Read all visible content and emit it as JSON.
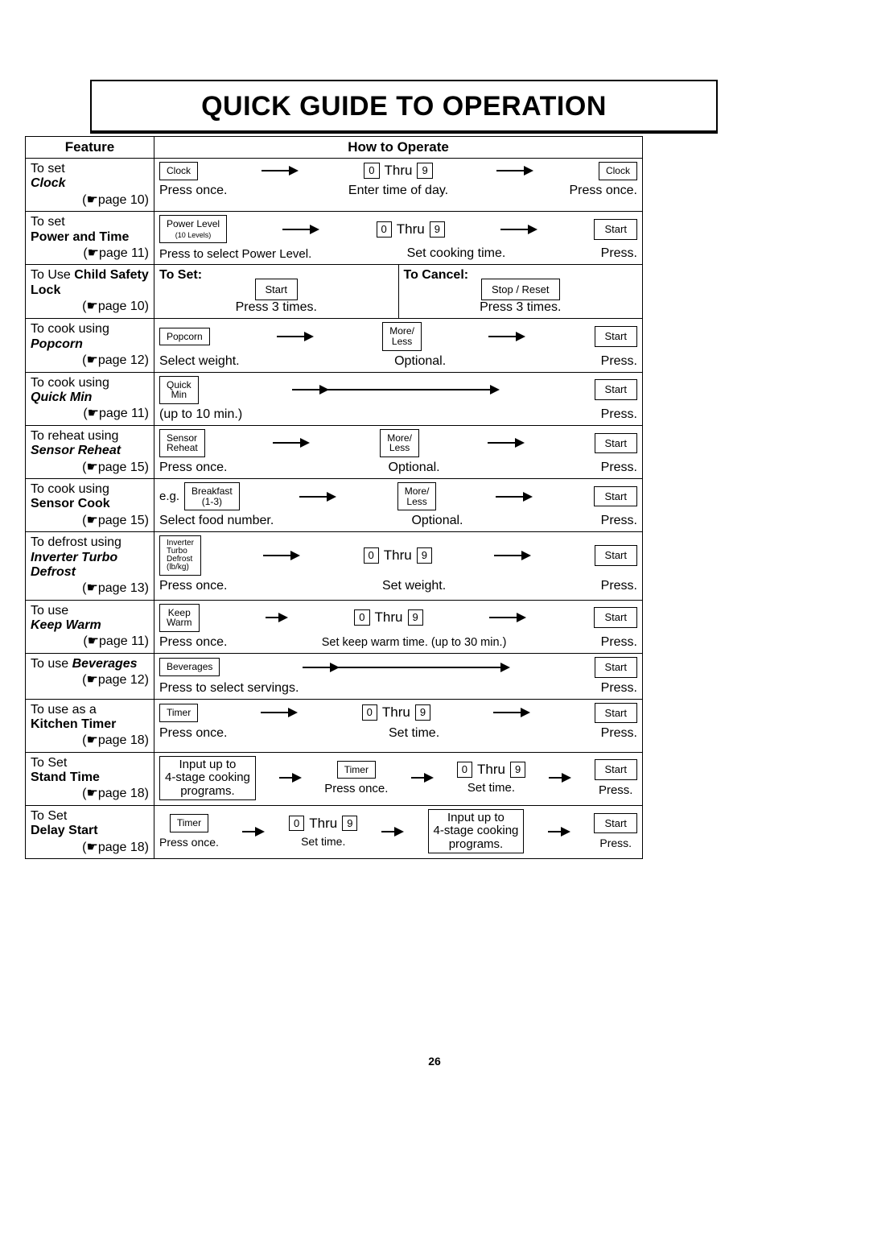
{
  "title": "QUICK GUIDE TO OPERATION",
  "page_number": "26",
  "headers": {
    "feature": "Feature",
    "operate": "How to Operate"
  },
  "common": {
    "thru": "Thru",
    "digit0": "0",
    "digit9": "9",
    "press": "Press.",
    "press_once": "Press once.",
    "press3": "Press 3 times.",
    "optional": "Optional.",
    "start": "Start"
  },
  "rows": {
    "clock": {
      "top": "To set",
      "bold": "Clock",
      "page": "(☛page 10)",
      "btn1": "Clock",
      "cap1": "Press once.",
      "cap2": "Enter time of day.",
      "btn3": "Clock",
      "cap3": "Press once."
    },
    "power": {
      "top": "To set",
      "bold": "Power and Time",
      "page": "(☛page 11)",
      "btn1": "Power Level",
      "btn1_sub": "(10 Levels)",
      "cap1": "Press to select Power Level.",
      "cap2": "Set cooking time.",
      "cap3": "Press."
    },
    "child": {
      "top": "To Use ",
      "bold": "Child Safety Lock",
      "page": "(☛page 10)",
      "set_label": "To Set:",
      "cancel_label": "To Cancel:",
      "btn_set": "Start",
      "btn_cancel": "Stop / Reset"
    },
    "popcorn": {
      "top": "To cook using",
      "bold": "Popcorn",
      "page": "(☛page 12)",
      "btn1": "Popcorn",
      "cap1": "Select weight.",
      "btn2": "More/\nLess",
      "cap2": "Optional.",
      "cap3": "Press."
    },
    "quickmin": {
      "top": "To cook using",
      "bold": "Quick Min",
      "page": "(☛page 11)",
      "btn1": "Quick\nMin",
      "cap1": "(up to 10 min.)",
      "cap3": "Press."
    },
    "reheat": {
      "top": "To reheat using",
      "bold": "Sensor Reheat",
      "page": "(☛page 15)",
      "btn1": "Sensor\nReheat",
      "cap1": "Press once.",
      "btn2": "More/\nLess",
      "cap2": "Optional.",
      "cap3": "Press."
    },
    "sensorcook": {
      "top": "To cook using",
      "bold": "Sensor Cook",
      "page": "(☛page 15)",
      "prefix": "e.g.",
      "btn1": "Breakfast\n(1-3)",
      "cap1": "Select food number.",
      "btn2": "More/\nLess",
      "cap2": "Optional.",
      "cap3": "Press."
    },
    "defrost": {
      "top": "To defrost using",
      "bold": "Inverter Turbo Defrost",
      "page": "(☛page 13)",
      "btn1": "Inverter\nTurbo\nDefrost\n(lb/kg)",
      "cap1": "Press once.",
      "cap2": "Set weight.",
      "cap3": "Press."
    },
    "keepwarm": {
      "top": "To use",
      "bold": "Keep Warm",
      "page": "(☛page 11)",
      "btn1": "Keep\nWarm",
      "cap1": "Press once.",
      "cap2": "Set keep warm time. (up to 30 min.)",
      "cap3": "Press."
    },
    "beverages": {
      "top": "To use ",
      "bold": "Beverages",
      "page": "(☛page 12)",
      "btn1": "Beverages",
      "cap1": "Press to select servings.",
      "cap3": "Press."
    },
    "timer": {
      "top": "To use as a",
      "bold": "Kitchen Timer",
      "page": "(☛page 18)",
      "btn1": "Timer",
      "cap1": "Press once.",
      "cap2": "Set time.",
      "cap3": "Press."
    },
    "stand": {
      "top": "To Set",
      "bold": "Stand Time",
      "page": "(☛page 18)",
      "multi": "Input up to\n4-stage cooking\nprograms.",
      "btn2": "Timer",
      "cap2": "Press once.",
      "cap3": "Set time.",
      "cap4": "Press."
    },
    "delay": {
      "top": "To Set",
      "bold": "Delay Start",
      "page": "(☛page 18)",
      "btn1": "Timer",
      "cap1": "Press once.",
      "cap2": "Set time.",
      "multi": "Input up to\n4-stage cooking\nprograms.",
      "cap4": "Press."
    }
  }
}
